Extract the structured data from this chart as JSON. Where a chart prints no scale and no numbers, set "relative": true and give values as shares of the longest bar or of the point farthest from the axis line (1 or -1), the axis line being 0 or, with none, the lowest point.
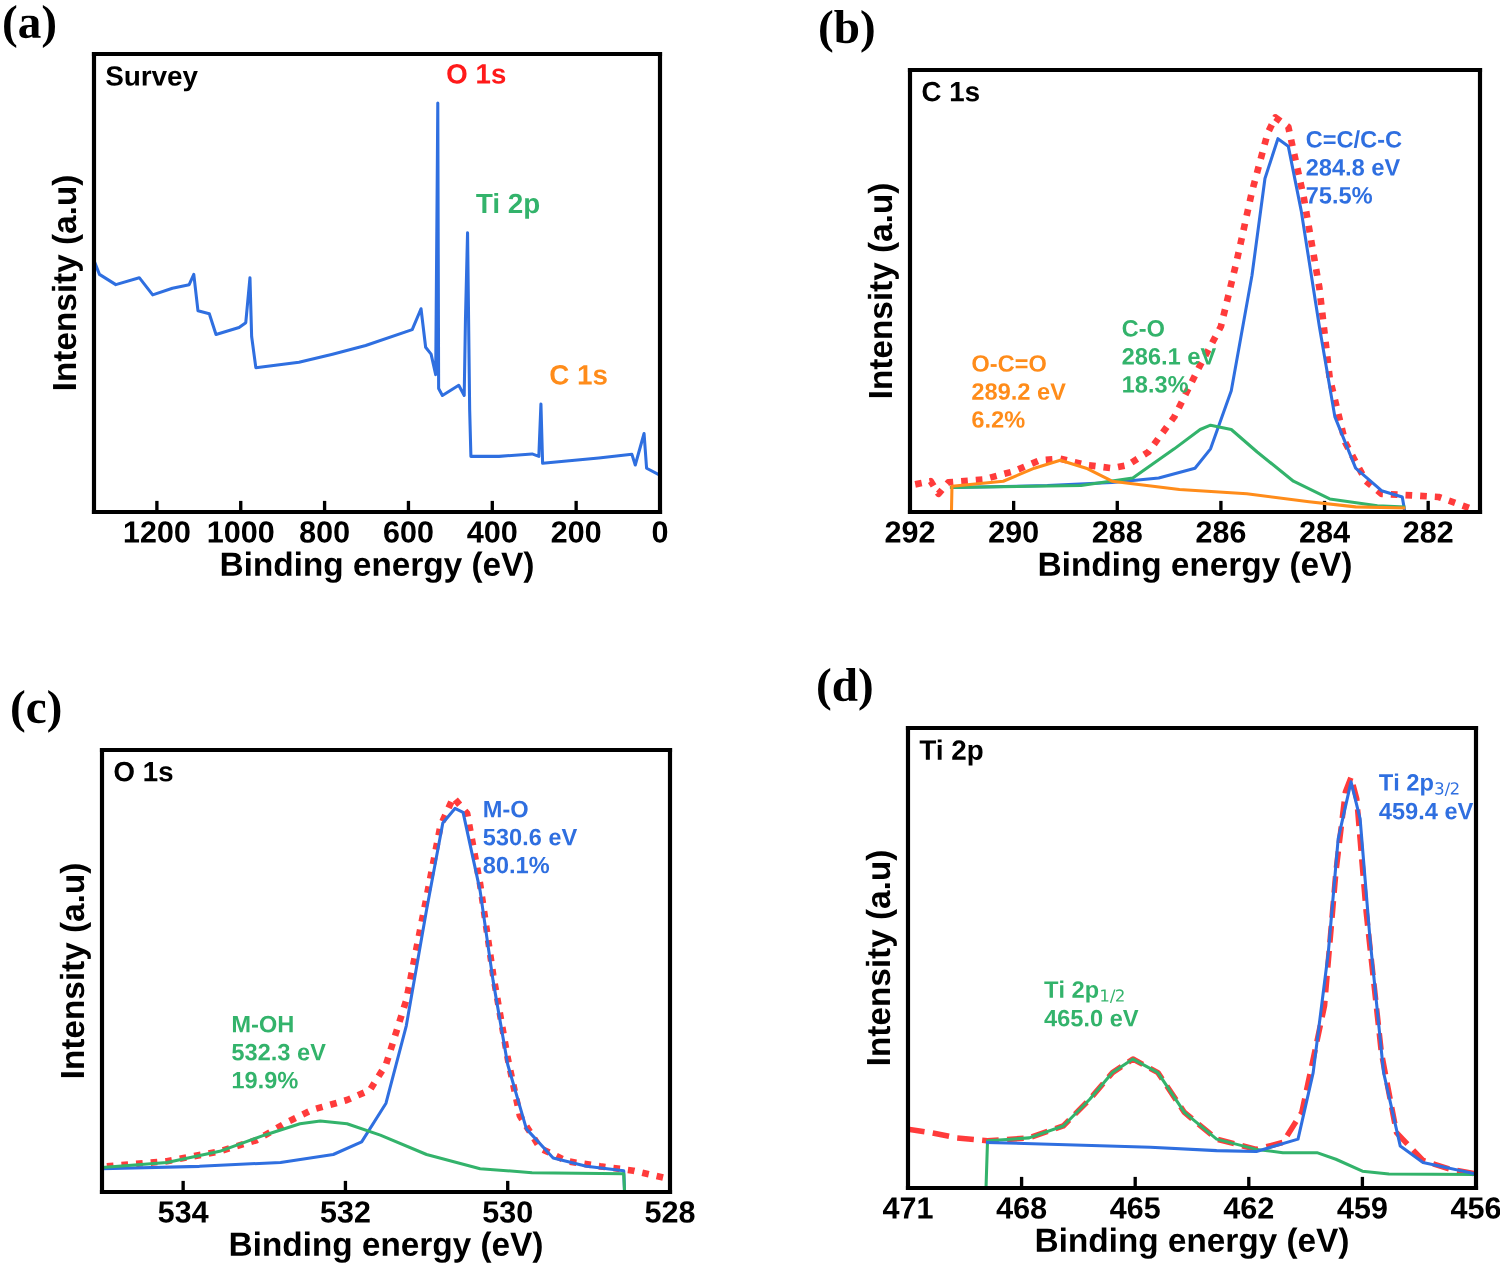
{
  "chart_data": [
    {
      "type": "line",
      "title": "Survey",
      "xlabel": "Binding energy (eV)",
      "ylabel": "Intensity (a.u)",
      "relative": true,
      "xlim": [
        1350,
        0
      ],
      "xticks": [
        1200,
        1000,
        800,
        600,
        400,
        200,
        0
      ],
      "annotations": [
        "(a)",
        {
          "text": "O 1s",
          "x": 530,
          "y": 1.0
        },
        {
          "text": "Ti 2p",
          "x": 459,
          "y": 0.683
        },
        {
          "text": "C 1s",
          "x": 284,
          "y": 0.264
        }
      ],
      "series": [
        {
          "color": "#2f6fe0",
          "x": [
            1350,
            1337,
            1298,
            1242,
            1210,
            1163,
            1123,
            1112,
            1102,
            1075,
            1059,
            1004,
            988,
            978,
            974,
            964,
            861,
            781,
            702,
            591,
            570,
            559,
            546,
            535,
            531,
            530,
            528,
            519,
            480,
            467,
            464,
            459,
            454,
            451,
            384,
            305,
            289,
            284,
            280,
            146,
            67,
            59,
            38,
            32,
            0
          ],
          "values": [
            0.615,
            0.581,
            0.556,
            0.573,
            0.531,
            0.547,
            0.556,
            0.581,
            0.492,
            0.485,
            0.434,
            0.451,
            0.463,
            0.573,
            0.429,
            0.353,
            0.366,
            0.386,
            0.407,
            0.446,
            0.497,
            0.403,
            0.386,
            0.336,
            0.86,
            1.0,
            0.302,
            0.285,
            0.31,
            0.285,
            0.471,
            0.683,
            0.251,
            0.136,
            0.136,
            0.142,
            0.136,
            0.264,
            0.119,
            0.132,
            0.141,
            0.115,
            0.192,
            0.107,
            0.09
          ]
        }
      ]
    },
    {
      "type": "line",
      "title": "C 1s",
      "xlabel": "Binding energy (eV)",
      "ylabel": "Intensity (a.u)",
      "relative": true,
      "xlim": [
        292,
        281
      ],
      "xticks": [
        292,
        290,
        288,
        286,
        284,
        282
      ],
      "annotations": [
        "(b)"
      ],
      "series": [
        {
          "color": "#ff3b3b",
          "line_style": "dotted",
          "x": [
            291.9,
            291.6,
            291.45,
            291.26,
            290.6,
            290.0,
            289.5,
            289.1,
            288.6,
            288.1,
            287.8,
            287.4,
            286.9,
            286.4,
            286.0,
            285.7,
            285.4,
            285.1,
            284.95,
            284.7,
            284.4,
            284.1,
            283.9,
            283.6,
            283.2,
            282.9,
            282.3,
            281.8,
            281.6,
            281.2
          ],
          "values": [
            0.07,
            0.078,
            0.046,
            0.075,
            0.082,
            0.103,
            0.131,
            0.135,
            0.119,
            0.111,
            0.119,
            0.152,
            0.241,
            0.372,
            0.47,
            0.633,
            0.812,
            0.959,
            1.0,
            0.976,
            0.796,
            0.568,
            0.339,
            0.176,
            0.078,
            0.046,
            0.042,
            0.038,
            0.029,
            0.01
          ]
        },
        {
          "name": "C=C/C-C\n284.8 eV\n75.5%",
          "color": "#2f6fe0",
          "x": [
            291.2,
            289.35,
            288.1,
            287.2,
            286.5,
            286.2,
            285.8,
            285.4,
            285.15,
            284.9,
            284.7,
            284.45,
            284.1,
            283.8,
            283.4,
            282.9,
            282.5,
            282.45
          ],
          "values": [
            0.062,
            0.067,
            0.075,
            0.086,
            0.111,
            0.16,
            0.307,
            0.6,
            0.845,
            0.946,
            0.927,
            0.763,
            0.47,
            0.241,
            0.111,
            0.054,
            0.038,
            0.0
          ]
        },
        {
          "name": "C-O\n286.1 eV\n18.3%",
          "color": "#33b36b",
          "x": [
            291.2,
            288.7,
            287.7,
            286.9,
            286.4,
            286.2,
            285.8,
            285.3,
            284.6,
            283.9,
            282.98,
            282.47
          ],
          "values": [
            0.062,
            0.067,
            0.086,
            0.16,
            0.209,
            0.22,
            0.209,
            0.152,
            0.078,
            0.033,
            0.016,
            0.013
          ]
        },
        {
          "name": "O-C=O\n289.2 eV\n6.2%",
          "color": "#ff8c1a",
          "x": [
            291.2,
            291.19,
            290.2,
            289.6,
            289.1,
            288.6,
            288.1,
            286.8,
            285.5,
            284.3,
            283.4,
            282.47
          ],
          "values": [
            0.0,
            0.065,
            0.078,
            0.111,
            0.131,
            0.111,
            0.078,
            0.057,
            0.046,
            0.026,
            0.013,
            0.01
          ]
        }
      ]
    },
    {
      "type": "line",
      "title": "O 1s",
      "xlabel": "Binding energy (eV)",
      "ylabel": "Intensity (a.u)",
      "relative": true,
      "xlim": [
        535,
        528
      ],
      "xticks": [
        534,
        532,
        530,
        528
      ],
      "annotations": [
        "(c)"
      ],
      "series": [
        {
          "color": "#ff3b3b",
          "line_style": "dotted",
          "x": [
            534.94,
            534.2,
            533.55,
            533.1,
            532.7,
            532.4,
            531.98,
            531.7,
            531.5,
            531.25,
            531.0,
            530.83,
            530.67,
            530.5,
            530.34,
            530.18,
            530.0,
            529.85,
            529.6,
            529.27,
            528.86,
            528.45,
            528.0
          ],
          "values": [
            0.065,
            0.078,
            0.103,
            0.131,
            0.179,
            0.209,
            0.233,
            0.258,
            0.323,
            0.486,
            0.747,
            0.927,
            1.0,
            0.959,
            0.78,
            0.551,
            0.339,
            0.193,
            0.111,
            0.078,
            0.065,
            0.054,
            0.033
          ]
        },
        {
          "name": "M-O\n530.6 eV\n80.1%",
          "color": "#2f6fe0",
          "x": [
            535,
            533.8,
            532.8,
            532.15,
            531.8,
            531.5,
            531.25,
            531.0,
            530.8,
            530.65,
            530.55,
            530.34,
            530.18,
            530.0,
            529.77,
            529.44,
            529.03,
            528.57,
            528.56
          ],
          "values": [
            0.059,
            0.065,
            0.075,
            0.095,
            0.127,
            0.225,
            0.421,
            0.715,
            0.935,
            0.972,
            0.962,
            0.763,
            0.535,
            0.323,
            0.16,
            0.086,
            0.065,
            0.054,
            0.0
          ]
        },
        {
          "name": "M-OH\n532.3 eV\n19.9%",
          "color": "#33b36b",
          "x": [
            535,
            534.2,
            533.55,
            533.0,
            532.56,
            532.31,
            531.98,
            531.57,
            531.0,
            530.34,
            529.7,
            528.57,
            528.56
          ],
          "values": [
            0.062,
            0.075,
            0.103,
            0.144,
            0.173,
            0.18,
            0.173,
            0.144,
            0.095,
            0.059,
            0.049,
            0.046,
            0.0
          ]
        }
      ]
    },
    {
      "type": "line",
      "title": "Ti 2p",
      "xlabel": "Binding energy (eV)",
      "ylabel": "Intensity (a.u)",
      "relative": true,
      "xlim": [
        471,
        456
      ],
      "xticks": [
        471,
        468,
        465,
        462,
        459,
        456
      ],
      "annotations": [
        "(d)"
      ],
      "series": [
        {
          "color": "#ff3b3b",
          "line_style": "dashed",
          "x": [
            471,
            470.4,
            469.7,
            468.9,
            467.8,
            466.9,
            466.2,
            465.6,
            465.06,
            464.4,
            463.7,
            462.85,
            461.8,
            461.1,
            460.6,
            460.0,
            459.7,
            459.45,
            459.3,
            459.15,
            458.9,
            458.5,
            458.1,
            457.4,
            456.7,
            456.0
          ],
          "values": [
            0.143,
            0.135,
            0.122,
            0.115,
            0.122,
            0.151,
            0.216,
            0.281,
            0.314,
            0.281,
            0.184,
            0.119,
            0.094,
            0.111,
            0.184,
            0.444,
            0.769,
            0.964,
            1.0,
            0.948,
            0.672,
            0.33,
            0.135,
            0.067,
            0.046,
            0.034
          ]
        },
        {
          "name": "Ti 2p$_{1/2}$\n465.0 eV",
          "color": "#33b36b",
          "x": [
            471,
            468.94,
            468.9,
            467.8,
            466.9,
            466.2,
            465.6,
            465.06,
            464.4,
            463.7,
            462.85,
            461.8,
            461.1,
            460.2,
            459.7,
            459.0,
            458.3,
            456.0
          ],
          "values": [
            0.0,
            0.0,
            0.115,
            0.122,
            0.151,
            0.216,
            0.281,
            0.314,
            0.281,
            0.184,
            0.119,
            0.094,
            0.086,
            0.086,
            0.07,
            0.041,
            0.034,
            0.033
          ]
        },
        {
          "name": "Ti 2p$_{3/2}$\n459.4 eV",
          "color": "#2f6fe0",
          "x": [
            468.9,
            464.6,
            462.85,
            461.8,
            460.7,
            460.3,
            459.9,
            459.64,
            459.3,
            459.06,
            458.8,
            458.44,
            458.0,
            457.4,
            456.0
          ],
          "values": [
            0.111,
            0.099,
            0.091,
            0.089,
            0.119,
            0.281,
            0.574,
            0.85,
            0.989,
            0.899,
            0.607,
            0.281,
            0.102,
            0.062,
            0.034
          ]
        }
      ]
    }
  ]
}
